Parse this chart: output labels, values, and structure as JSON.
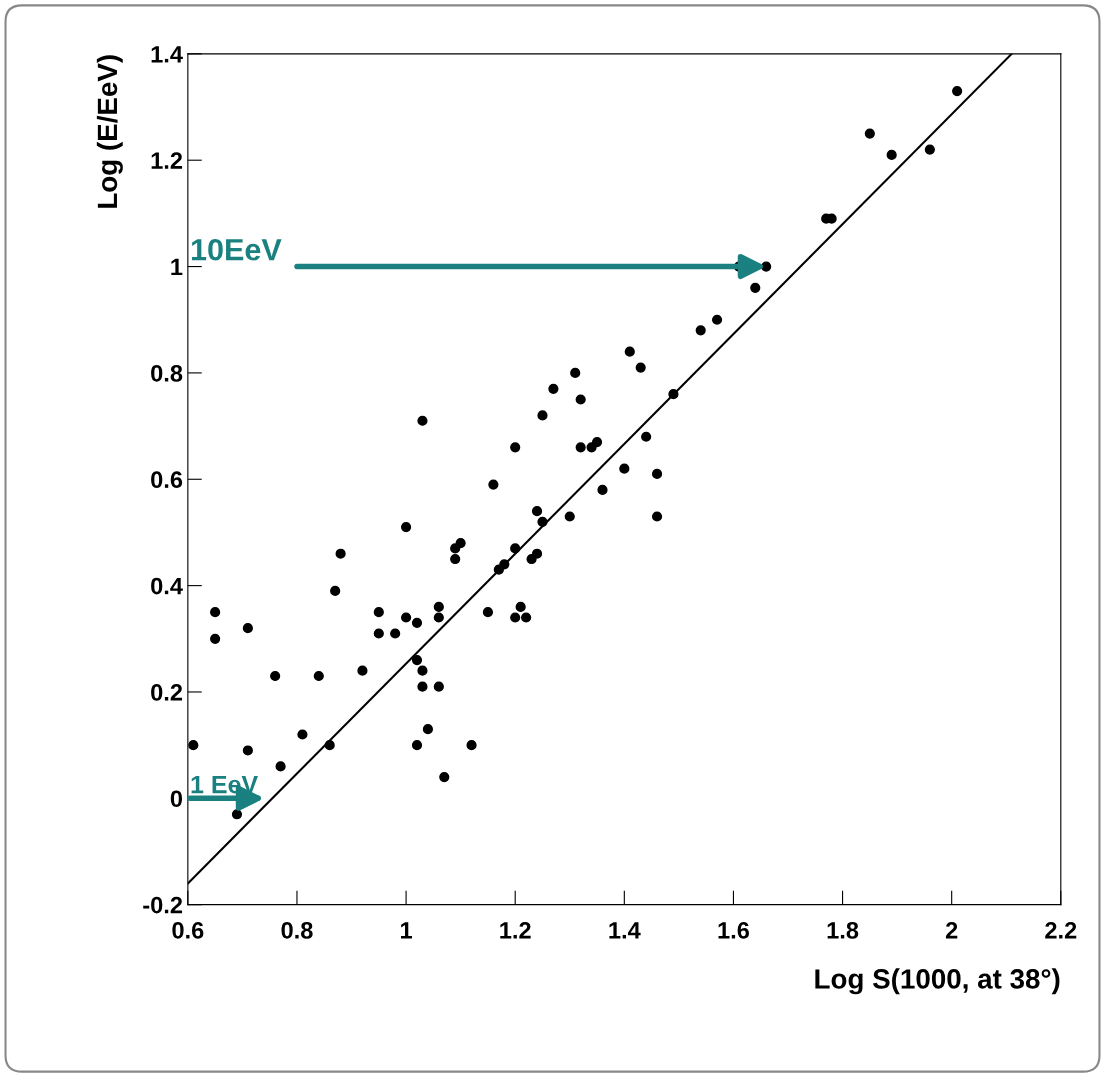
{
  "chart_data": {
    "type": "scatter",
    "xlabel": "Log S(1000, at 38°)",
    "ylabel": "Log (E/EeV)",
    "xlim": [
      0.6,
      2.2
    ],
    "ylim": [
      -0.2,
      1.4
    ],
    "xticks": [
      0.6,
      0.8,
      1,
      1.2,
      1.4,
      1.6,
      1.8,
      2,
      2.2
    ],
    "yticks": [
      -0.2,
      0,
      0.2,
      0.4,
      0.6,
      0.8,
      1,
      1.2,
      1.4
    ],
    "grid": false,
    "marker": "circle",
    "series": [
      {
        "color": "#000000",
        "x": [
          0.61,
          0.65,
          0.65,
          0.71,
          0.69,
          0.71,
          0.76,
          0.77,
          0.81,
          0.84,
          0.86,
          0.87,
          0.88,
          0.92,
          0.95,
          0.95,
          0.98,
          1.0,
          1.0,
          1.02,
          1.02,
          1.03,
          1.02,
          1.03,
          1.03,
          1.04,
          1.06,
          1.06,
          1.06,
          1.07,
          1.09,
          1.1,
          1.09,
          1.12,
          1.15,
          1.16,
          1.17,
          1.18,
          1.2,
          1.2,
          1.2,
          1.21,
          1.22,
          1.23,
          1.24,
          1.24,
          1.25,
          1.25,
          1.27,
          1.3,
          1.31,
          1.32,
          1.32,
          1.34,
          1.35,
          1.36,
          1.4,
          1.41,
          1.43,
          1.44,
          1.46,
          1.46,
          1.49,
          1.54,
          1.57,
          1.61,
          1.64,
          1.66,
          1.77,
          1.78,
          1.85,
          1.89,
          1.96,
          2.01
        ],
        "values": [
          0.1,
          0.35,
          0.3,
          0.32,
          -0.03,
          0.09,
          0.23,
          0.06,
          0.12,
          0.23,
          0.1,
          0.39,
          0.46,
          0.24,
          0.35,
          0.31,
          0.31,
          0.34,
          0.51,
          0.33,
          0.26,
          0.21,
          0.1,
          0.71,
          0.24,
          0.13,
          0.21,
          0.36,
          0.34,
          0.04,
          0.47,
          0.48,
          0.45,
          0.1,
          0.35,
          0.59,
          0.43,
          0.44,
          0.66,
          0.47,
          0.34,
          0.36,
          0.34,
          0.45,
          0.54,
          0.46,
          0.52,
          0.72,
          0.77,
          0.53,
          0.8,
          0.75,
          0.66,
          0.66,
          0.67,
          0.58,
          0.62,
          0.84,
          0.81,
          0.68,
          0.61,
          0.53,
          0.76,
          0.88,
          0.9,
          1.0,
          0.96,
          1.0,
          1.09,
          1.09,
          1.25,
          1.21,
          1.22,
          1.33
        ]
      },
      {
        "type": "line",
        "marker": "none",
        "color": "#000000",
        "x": [
          0.6,
          2.11
        ],
        "values": [
          -0.16,
          1.4
        ]
      }
    ],
    "annotations": [
      {
        "text": "10EeV",
        "x": 1.66,
        "y": 1
      },
      {
        "text": "1 EeV",
        "x": 0.74,
        "y": 0
      }
    ]
  }
}
